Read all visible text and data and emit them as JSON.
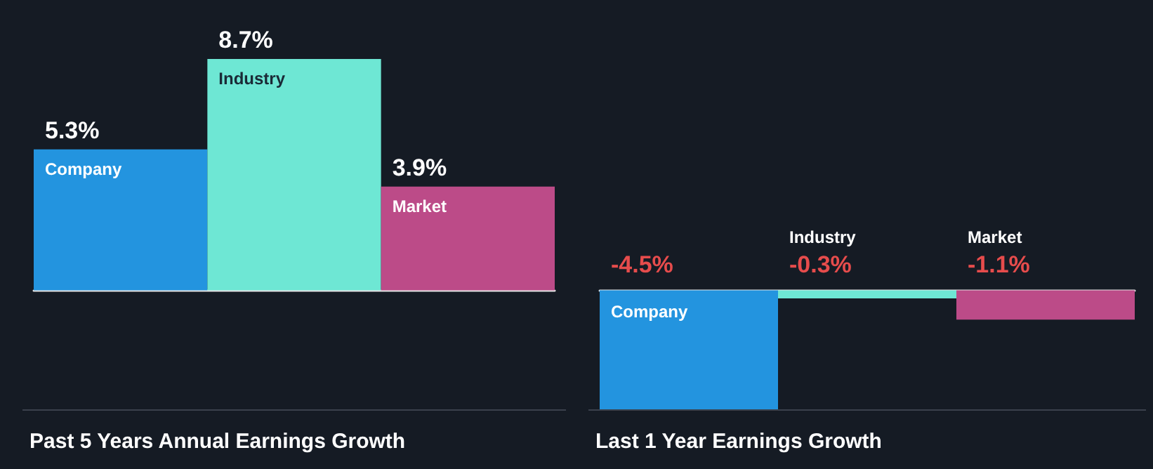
{
  "chart_data": [
    {
      "type": "bar",
      "title": "Past 5 Years Annual Earnings Growth",
      "categories": [
        "Company",
        "Industry",
        "Market"
      ],
      "values": [
        5.3,
        8.7,
        3.9
      ],
      "colors": [
        "#2394df",
        "#6ee7d4",
        "#bc4b88"
      ],
      "value_labels": [
        "5.3%",
        "8.7%",
        "3.9%"
      ]
    },
    {
      "type": "bar",
      "title": "Last 1 Year Earnings Growth",
      "categories": [
        "Company",
        "Industry",
        "Market"
      ],
      "values": [
        -4.5,
        -0.3,
        -1.1
      ],
      "colors": [
        "#2394df",
        "#6ee7d4",
        "#bc4b88"
      ],
      "value_labels": [
        "-4.5%",
        "-0.3%",
        "-1.1%"
      ]
    }
  ]
}
